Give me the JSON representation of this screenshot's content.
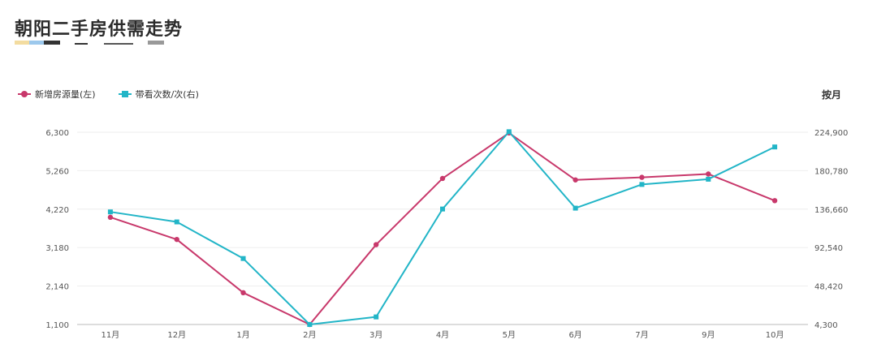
{
  "header": {
    "title": "朝阳二手房供需走势"
  },
  "period_label": "按月",
  "colors": {
    "left_series": "#c8386b",
    "right_series": "#22b5c7",
    "grid": "#eeeeee"
  },
  "chart_data": {
    "type": "line",
    "title": "朝阳二手房供需走势",
    "x": [
      "11月",
      "12月",
      "1月",
      "2月",
      "3月",
      "4月",
      "5月",
      "6月",
      "7月",
      "9月",
      "10月"
    ],
    "legend_position": "top-left",
    "grid": true,
    "series": [
      {
        "name": "新增房源量(左)",
        "axis": "left",
        "marker": "circle",
        "values": [
          4000,
          3400,
          1960,
          1100,
          3260,
          5050,
          6280,
          5010,
          5080,
          5170,
          4450
        ]
      },
      {
        "name": "带看次数/次(右)",
        "axis": "right",
        "marker": "square",
        "values": [
          133500,
          122000,
          80000,
          4300,
          13000,
          136800,
          225500,
          137800,
          165000,
          171000,
          208000
        ]
      }
    ],
    "y_left": {
      "ylim": [
        1100,
        6300
      ],
      "ticks": [
        "1,100",
        "2,140",
        "3,180",
        "4,220",
        "5,260",
        "6,300"
      ]
    },
    "y_right": {
      "ylim": [
        4300,
        224900
      ],
      "ticks": [
        "4,300",
        "48,420",
        "92,540",
        "136,660",
        "180,780",
        "224,900"
      ]
    }
  }
}
